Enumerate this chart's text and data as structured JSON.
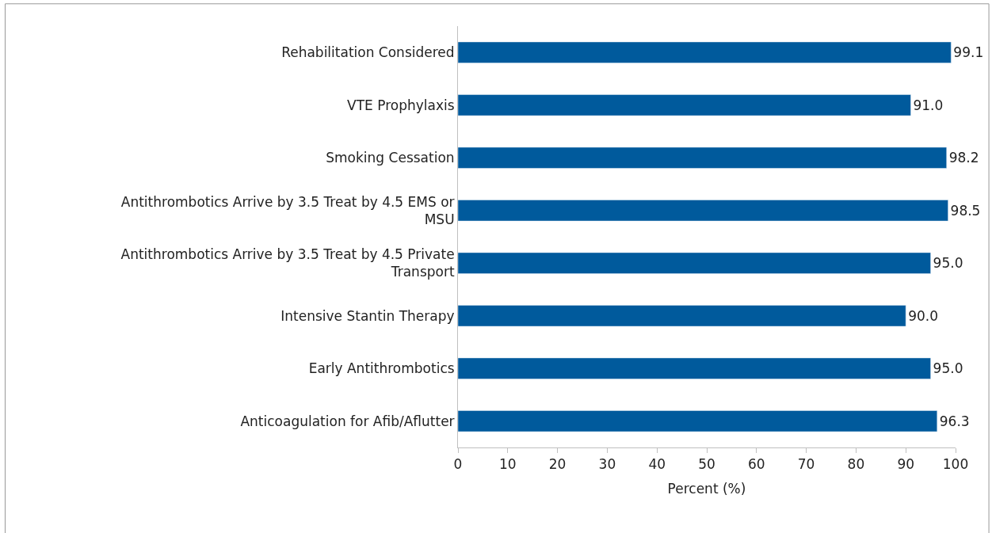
{
  "chart_data": {
    "type": "bar",
    "orientation": "horizontal",
    "xlabel": "Percent (%)",
    "categories": [
      "Rehabilitation Considered",
      "VTE Prophylaxis",
      "Smoking Cessation",
      "Antithrombotics Arrive by 3.5 Treat by 4.5 EMS or MSU",
      "Antithrombotics Arrive by 3.5 Treat by 4.5 Private Transport",
      "Intensive Stantin Therapy",
      "Early Antithrombotics",
      "Anticoagulation for Afib/Aflutter"
    ],
    "values": [
      99.1,
      91.0,
      98.2,
      98.5,
      95.0,
      90.0,
      95.0,
      96.3
    ],
    "color": "#005a9c",
    "xlim": [
      0,
      100
    ],
    "xticks": [
      0,
      10,
      20,
      30,
      40,
      50,
      60,
      70,
      80,
      90,
      100
    ],
    "value_labels": [
      "99.1",
      "91.0",
      "98.2",
      "98.5",
      "95.0",
      "90.0",
      "95.0",
      "96.3"
    ]
  }
}
